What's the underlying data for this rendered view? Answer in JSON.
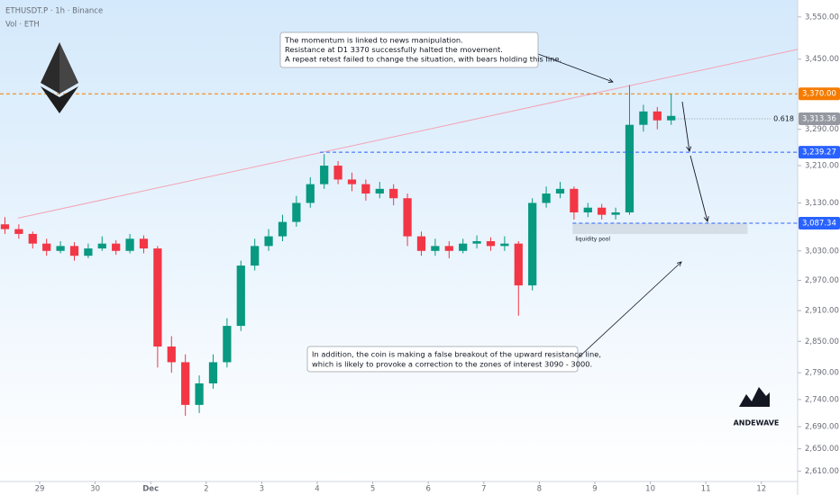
{
  "header": {
    "symbol": "ETHUSDT.P · 1h · Binance",
    "volume": "Vol · ETH"
  },
  "chart_data": {
    "type": "candlestick",
    "log_scale": true,
    "up_color": "#089981",
    "down_color": "#f23645",
    "candles": {
      "x": [
        -0.625,
        -0.375,
        -0.125,
        0.125,
        0.375,
        0.625,
        0.875,
        1.125,
        1.375,
        1.625,
        1.875,
        2.125,
        2.375,
        2.625,
        2.875,
        3.125,
        3.375,
        3.625,
        3.875,
        4.125,
        4.375,
        4.625,
        4.875,
        5.125,
        5.375,
        5.625,
        5.875,
        6.125,
        6.375,
        6.625,
        6.875,
        7.125,
        7.375,
        7.625,
        7.875,
        8.125,
        8.375,
        8.625,
        8.875,
        9.125,
        9.375,
        9.625,
        9.875,
        10.125,
        10.375,
        10.625,
        10.875,
        11.125,
        11.375
      ],
      "open": [
        3085,
        3075,
        3065,
        3045,
        3030,
        3040,
        3020,
        3035,
        3045,
        3030,
        3055,
        3035,
        2840,
        2810,
        2730,
        2770,
        2810,
        2880,
        3000,
        3040,
        3060,
        3090,
        3130,
        3170,
        3210,
        3180,
        3170,
        3150,
        3160,
        3140,
        3060,
        3030,
        3040,
        3030,
        3045,
        3050,
        3040,
        3045,
        2960,
        3130,
        3150,
        3160,
        3110,
        3120,
        3105,
        3110,
        3300,
        3330,
        3310
      ],
      "high": [
        3100,
        3085,
        3070,
        3055,
        3050,
        3048,
        3045,
        3060,
        3052,
        3065,
        3062,
        3040,
        2860,
        2825,
        2785,
        2825,
        2895,
        3010,
        3055,
        3075,
        3105,
        3145,
        3185,
        3235,
        3220,
        3195,
        3180,
        3175,
        3170,
        3150,
        3070,
        3055,
        3050,
        3055,
        3062,
        3058,
        3060,
        3050,
        3140,
        3165,
        3175,
        3165,
        3130,
        3128,
        3120,
        3390,
        3345,
        3340,
        3370
      ],
      "low": [
        3065,
        3055,
        3035,
        3020,
        3025,
        3010,
        3015,
        3030,
        3022,
        3025,
        3025,
        2800,
        2790,
        2710,
        2715,
        2760,
        2800,
        2870,
        2990,
        3030,
        3050,
        3080,
        3120,
        3160,
        3170,
        3155,
        3135,
        3140,
        3125,
        3040,
        3020,
        3020,
        3015,
        3025,
        3035,
        3030,
        3030,
        2900,
        2950,
        3120,
        3140,
        3095,
        3100,
        3095,
        3095,
        3105,
        3285,
        3290,
        3300
      ],
      "close": [
        3075,
        3065,
        3045,
        3030,
        3040,
        3020,
        3035,
        3045,
        3030,
        3055,
        3035,
        2840,
        2810,
        2730,
        2770,
        2810,
        2880,
        3000,
        3040,
        3060,
        3090,
        3130,
        3170,
        3210,
        3180,
        3170,
        3150,
        3160,
        3140,
        3060,
        3030,
        3040,
        3030,
        3045,
        3050,
        3040,
        3045,
        2960,
        3130,
        3150,
        3160,
        3110,
        3120,
        3105,
        3110,
        3300,
        3330,
        3310,
        3320
      ]
    },
    "xlim": [
      -0.714,
      13.653
    ],
    "xticks": [
      {
        "value": 0,
        "label": "29"
      },
      {
        "value": 1,
        "label": "30"
      },
      {
        "value": 2,
        "label": "Dec"
      },
      {
        "value": 3,
        "label": "2"
      },
      {
        "value": 4,
        "label": "3"
      },
      {
        "value": 5,
        "label": "4"
      },
      {
        "value": 6,
        "label": "5"
      },
      {
        "value": 7,
        "label": "6"
      },
      {
        "value": 8,
        "label": "7"
      },
      {
        "value": 9,
        "label": "8"
      },
      {
        "value": 10,
        "label": "9"
      },
      {
        "value": 11,
        "label": "10"
      },
      {
        "value": 12,
        "label": "11"
      },
      {
        "value": 13,
        "label": "12"
      }
    ],
    "ylim": [
      2592,
      3591
    ],
    "yticks": [
      {
        "value": 3550,
        "label": "3,550.00"
      },
      {
        "value": 3450,
        "label": "3,450.00"
      },
      {
        "value": 3290,
        "label": "3,290.00"
      },
      {
        "value": 3210,
        "label": "3,210.00"
      },
      {
        "value": 3130,
        "label": "3,130.00"
      },
      {
        "value": 3030,
        "label": "3,030.00"
      },
      {
        "value": 2970,
        "label": "2,970.00"
      },
      {
        "value": 2910,
        "label": "2,910.00"
      },
      {
        "value": 2850,
        "label": "2,850.00"
      },
      {
        "value": 2790,
        "label": "2,790.00"
      },
      {
        "value": 2740,
        "label": "2,740.00"
      },
      {
        "value": 2690,
        "label": "2,690.00"
      },
      {
        "value": 2650,
        "label": "2,650.00"
      },
      {
        "value": 2610,
        "label": "2,610.00"
      }
    ],
    "levels": [
      {
        "value": 3370,
        "label": "3,370.00",
        "color": "#f57c00",
        "start": -0.714,
        "style": "dashed"
      },
      {
        "value": 3313.36,
        "label": "3,313.36",
        "color": "#9598a1",
        "start": 11.45,
        "style": "dotted",
        "fib": "0.618"
      },
      {
        "value": 3239.27,
        "label": "3,239.27",
        "color": "#2962ff",
        "start": 5.05,
        "style": "dashed"
      },
      {
        "value": 3087.34,
        "label": "3,087.34",
        "color": "#2962ff",
        "start": 9.6,
        "style": "dashed"
      }
    ],
    "trendline": {
      "x": [
        -0.39,
        13.653
      ],
      "y": [
        3098,
        3473
      ],
      "color": "#f4a3b4"
    },
    "zone": {
      "label": "liquidity pool",
      "x": [
        9.6,
        12.75
      ],
      "y": [
        3087.34,
        3065
      ]
    },
    "annotations": [
      {
        "lines": [
          "The momentum is linked to news manipulation.",
          "Resistance at D1 3370 successfully halted the movement.",
          "A repeat retest failed to change the situation, with bears holding this line."
        ]
      },
      {
        "lines": [
          "In addition, the coin is making a false breakout of the upward resistance line,",
          "which is likely to provoke a correction to the zones of interest 3090 - 3000."
        ]
      }
    ]
  },
  "brand": "ANDEWAVE"
}
